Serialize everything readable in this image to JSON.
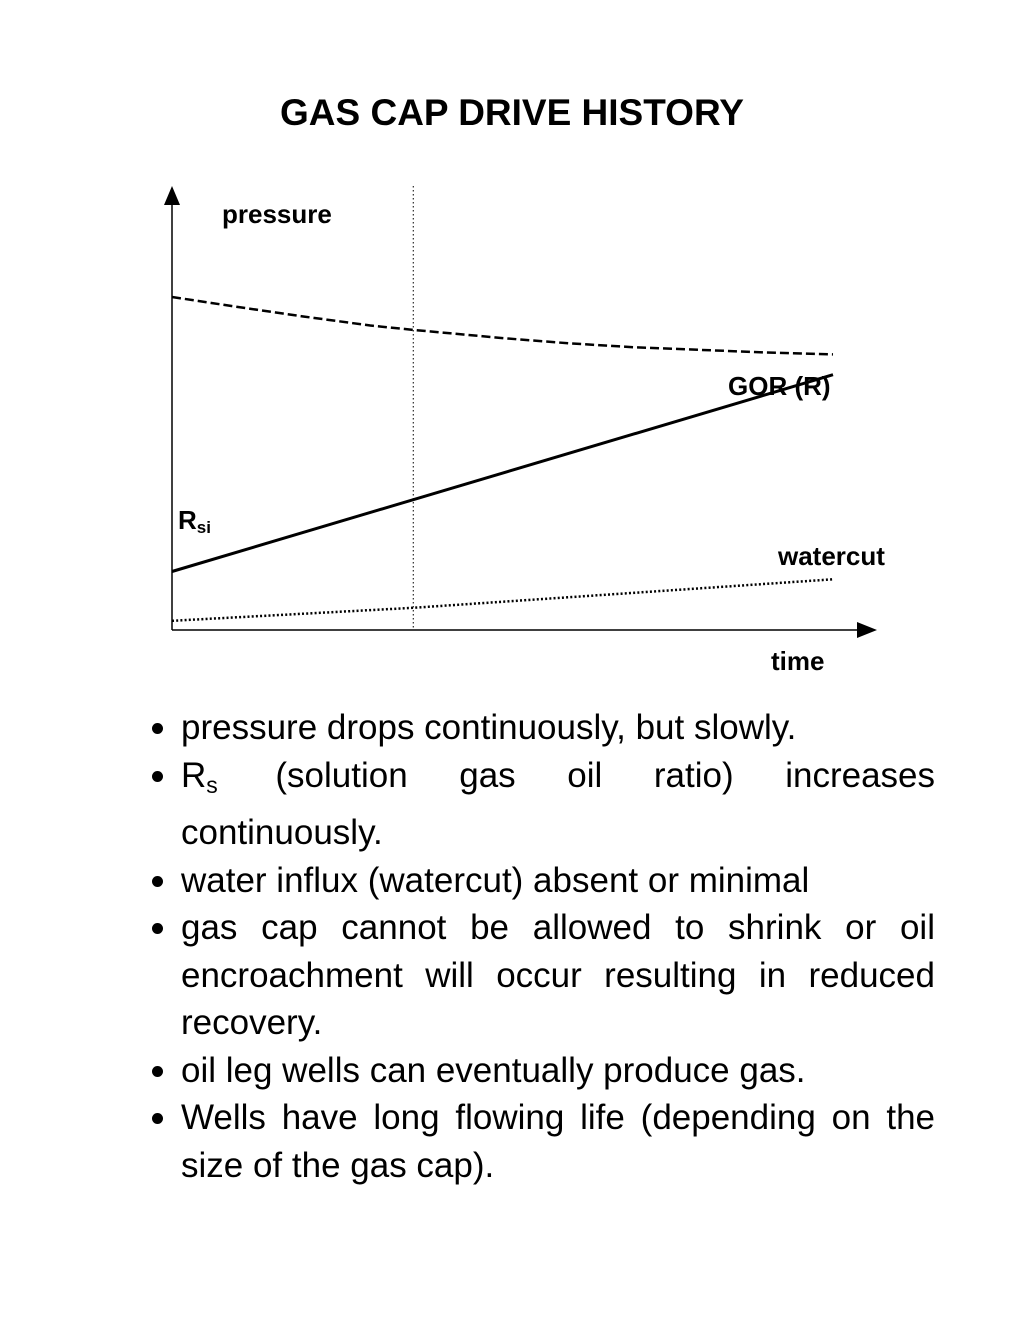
{
  "title": "GAS CAP DRIVE HISTORY",
  "chart_data": {
    "type": "line",
    "x": [
      0,
      1
    ],
    "xlabel": "time",
    "ylabel": "",
    "xlim": [
      0,
      1.06
    ],
    "ylim": [
      0,
      1
    ],
    "grid": false,
    "reference_line": {
      "x": 0.365,
      "style": "dotted"
    },
    "series": [
      {
        "name": "pressure",
        "style": "dashed",
        "x": [
          0,
          0.1,
          0.2,
          0.3,
          0.365,
          0.5,
          0.6,
          0.7,
          0.8,
          0.9,
          1.0
        ],
        "values": [
          0.9,
          0.873,
          0.847,
          0.823,
          0.811,
          0.789,
          0.775,
          0.764,
          0.757,
          0.75,
          0.745
        ]
      },
      {
        "name": "GOR (R)",
        "style": "solid",
        "x": [
          0,
          1
        ],
        "values": [
          0.158,
          0.69
        ]
      },
      {
        "name": "watercut",
        "style": "dotted",
        "x": [
          0,
          0.365,
          1
        ],
        "values": [
          0.025,
          0.06,
          0.137
        ]
      }
    ],
    "annotations": [
      {
        "label": "R",
        "subscript": "si"
      }
    ]
  },
  "bullets": [
    {
      "text": "pressure drops continuously, but slowly."
    },
    {
      "symbol": "R",
      "subscript": "s",
      "text": "(solution gas oil ratio) increases continuously."
    },
    {
      "text": "water influx (watercut) absent or minimal"
    },
    {
      "text": "gas cap cannot be allowed to shrink or oil encroachment will occur resulting in reduced recovery."
    },
    {
      "text": "oil leg wells can eventually produce gas."
    },
    {
      "text": "Wells have long flowing life (depending on the size of the gas cap)."
    }
  ]
}
